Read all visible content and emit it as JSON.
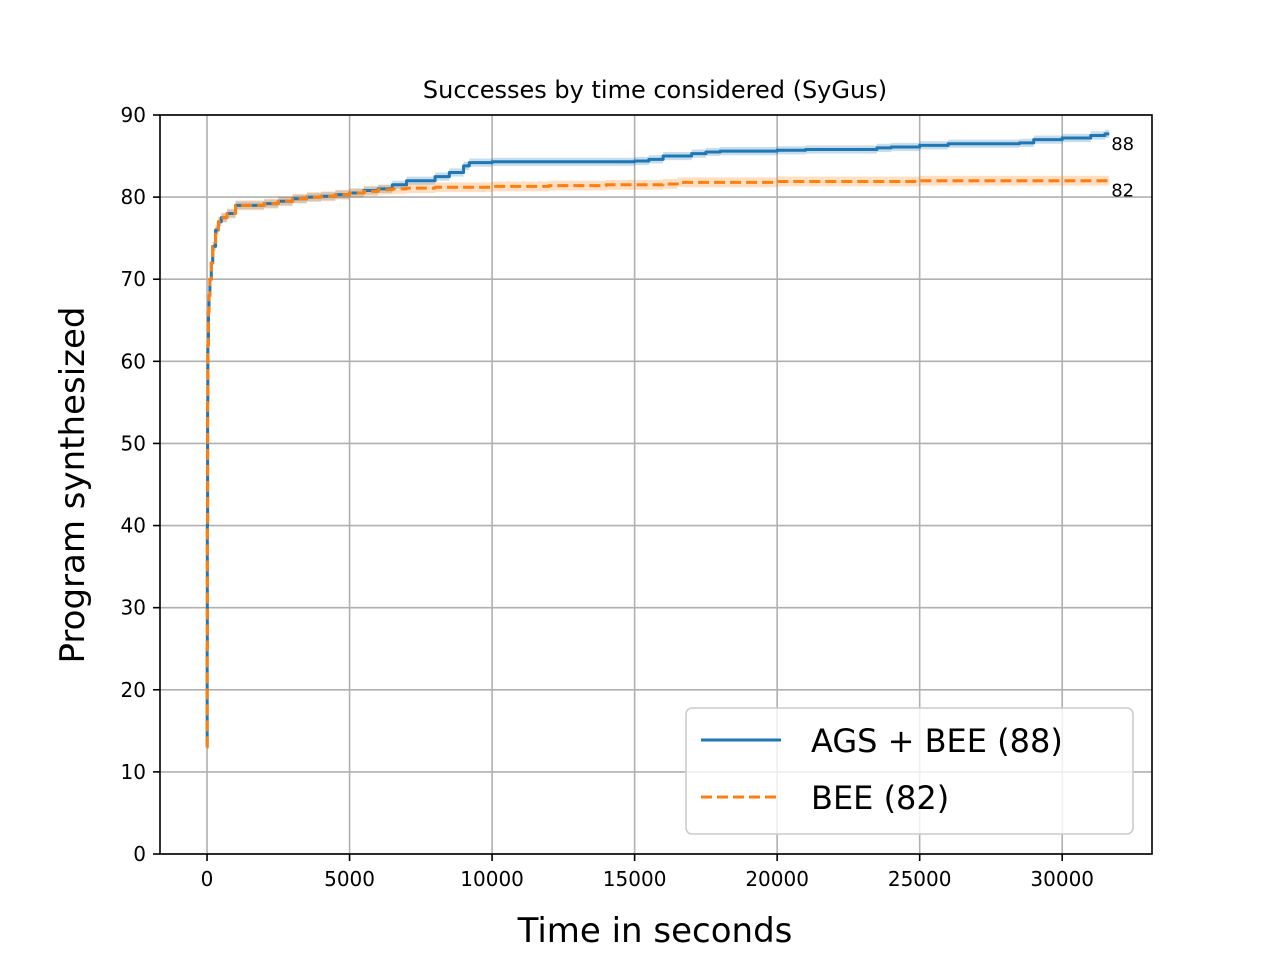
{
  "chart_data": {
    "type": "line",
    "title": "Successes by time considered (SyGus)",
    "xlabel": "Time in seconds",
    "ylabel": "Program synthesized",
    "xlim": [
      -1650,
      33150
    ],
    "ylim": [
      0,
      90
    ],
    "xticks": [
      0,
      5000,
      10000,
      15000,
      20000,
      25000,
      30000
    ],
    "yticks": [
      0,
      10,
      20,
      30,
      40,
      50,
      60,
      70,
      80,
      90
    ],
    "grid": true,
    "legend": {
      "position": "bottom-right"
    },
    "series": [
      {
        "name": "AGS + BEE (88)",
        "color": "#1f77b4",
        "linestyle": "solid",
        "end_label": "88",
        "band": 0.5,
        "x": [
          0,
          5,
          10,
          20,
          30,
          50,
          70,
          100,
          150,
          200,
          300,
          400,
          500,
          700,
          1000,
          1500,
          2000,
          2500,
          3000,
          3500,
          4000,
          4500,
          5000,
          5500,
          6000,
          6500,
          7000,
          7500,
          8000,
          8500,
          9000,
          9200,
          10000,
          12000,
          15000,
          15500,
          16000,
          16500,
          17000,
          17500,
          18000,
          20000,
          21000,
          22000,
          23500,
          24000,
          25000,
          26000,
          28500,
          29000,
          30000,
          31000,
          31500,
          31650
        ],
        "y": [
          13,
          25,
          40,
          55,
          62,
          66,
          68,
          70,
          72,
          74,
          76,
          77,
          77.5,
          78,
          79,
          79,
          79.2,
          79.5,
          79.8,
          80,
          80.1,
          80.3,
          80.5,
          80.8,
          81,
          81.5,
          82,
          82,
          82.5,
          83,
          83.8,
          84.2,
          84.3,
          84.3,
          84.4,
          84.6,
          85,
          85,
          85.3,
          85.5,
          85.6,
          85.7,
          85.8,
          85.8,
          86,
          86.1,
          86.3,
          86.5,
          86.6,
          87,
          87.2,
          87.5,
          87.7,
          87.7
        ]
      },
      {
        "name": "BEE (82)",
        "color": "#ff7f0e",
        "linestyle": "dashed",
        "end_label": "82",
        "band": 0.6,
        "x": [
          0,
          5,
          10,
          20,
          30,
          50,
          70,
          100,
          150,
          200,
          300,
          400,
          500,
          700,
          1000,
          1500,
          2000,
          2500,
          3000,
          3500,
          4000,
          4500,
          5000,
          5500,
          6000,
          6500,
          7000,
          8000,
          9000,
          10000,
          12000,
          14000,
          16000,
          16500,
          18000,
          20000,
          22000,
          24000,
          25000,
          27000,
          30000,
          31650
        ],
        "y": [
          13,
          25,
          40,
          55,
          62,
          66,
          68,
          70,
          72,
          74,
          76,
          77,
          77.5,
          78,
          79,
          79,
          79.2,
          79.5,
          79.8,
          80,
          80.1,
          80.3,
          80.5,
          80.7,
          80.9,
          81,
          81.1,
          81.2,
          81.2,
          81.3,
          81.4,
          81.5,
          81.6,
          81.8,
          81.8,
          81.9,
          81.9,
          81.9,
          82,
          82,
          82,
          82
        ]
      }
    ]
  }
}
